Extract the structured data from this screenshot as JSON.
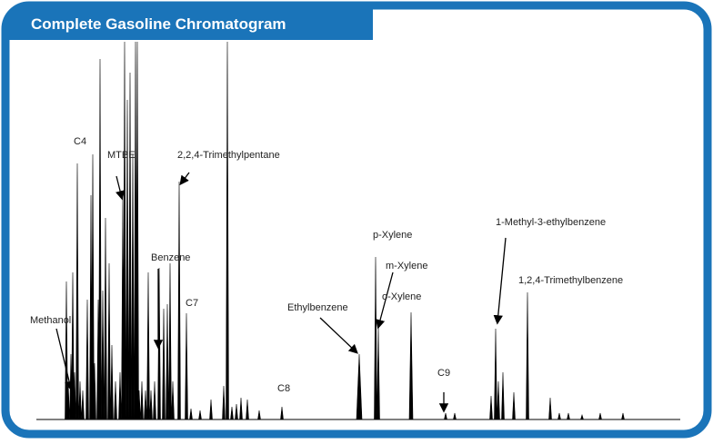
{
  "header": {
    "title": "Complete Gasoline Chromatogram"
  },
  "labels": [
    "C4",
    "MTBE",
    "2,2,4-Trimethylpentane",
    "Benzene",
    "C7",
    "Methanol",
    "C8",
    "Ethylbenzene",
    "p-Xylene",
    "m-Xylene",
    "o-Xylene",
    "C9",
    "1-Methyl-3-ethylbenzene",
    "1,2,4-Trimethylbenzene"
  ]
}
